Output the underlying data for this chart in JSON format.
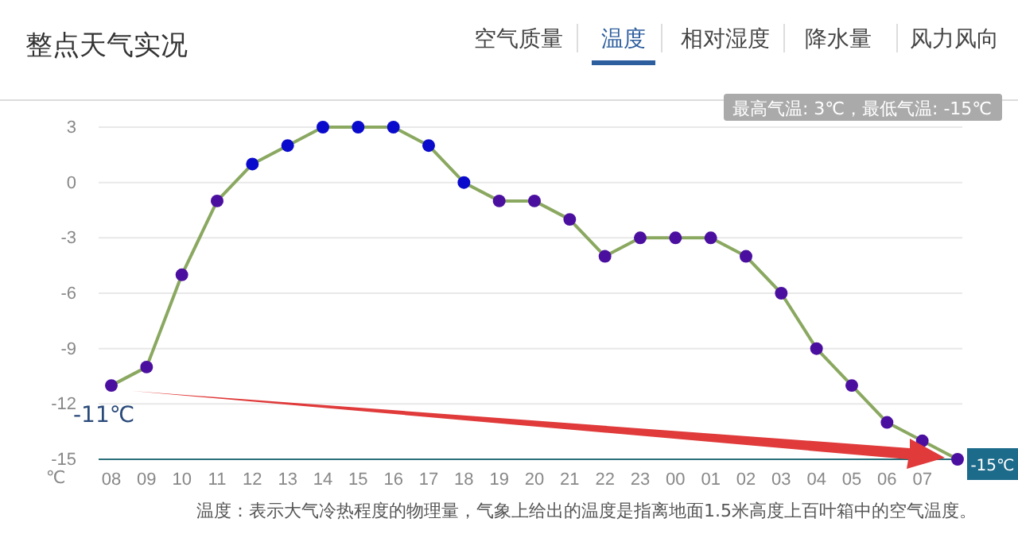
{
  "chart_data": {
    "type": "line",
    "title": "整点天气实况",
    "ylabel": "℃",
    "categories": [
      "08",
      "09",
      "10",
      "11",
      "12",
      "13",
      "14",
      "15",
      "16",
      "17",
      "18",
      "19",
      "20",
      "21",
      "22",
      "23",
      "00",
      "01",
      "02",
      "03",
      "04",
      "05",
      "06",
      "07",
      null
    ],
    "series": [
      {
        "color": "#8aa860",
        "values": [
          -11,
          -10,
          -5,
          -1,
          1,
          2,
          3,
          3,
          3,
          2,
          0,
          -1,
          -1,
          -2,
          -4,
          -3,
          -3,
          -3,
          -4,
          -6,
          -9,
          -11,
          -13,
          -14,
          -15
        ],
        "colors": [
          "#4b0fa0",
          "#4b0fa0",
          "#4b0fa0",
          "#4b0fa0",
          "#0a0acc",
          "#0a0acc",
          "#0a0acc",
          "#0a0acc",
          "#0a0acc",
          "#0a0acc",
          "#0a0acc",
          "#4b0fa0",
          "#4b0fa0",
          "#4b0fa0",
          "#4b0fa0",
          "#4b0fa0",
          "#4b0fa0",
          "#4b0fa0",
          "#4b0fa0",
          "#4b0fa0",
          "#4b0fa0",
          "#4b0fa0",
          "#4b0fa0",
          "#4b0fa0",
          "#4b0fa0"
        ]
      }
    ],
    "ylim": [
      -15,
      3
    ],
    "yticks": [
      -15,
      -12,
      -9,
      -6,
      -3,
      0,
      3
    ],
    "grid": "y",
    "marker": "circle",
    "annotations": [
      "空气质量",
      "温度",
      "相对湿度",
      "降水量",
      "风力风向",
      "最高气温: 3℃，最低气温: -15℃",
      {
        "text": "-11℃",
        "x": "08",
        "y": -11
      },
      "-15℃",
      "温度：表示大气冷热程度的物理量，气象上给出的温度是指离地面1.5米高度上百叶箱中的空气温度。"
    ]
  }
}
